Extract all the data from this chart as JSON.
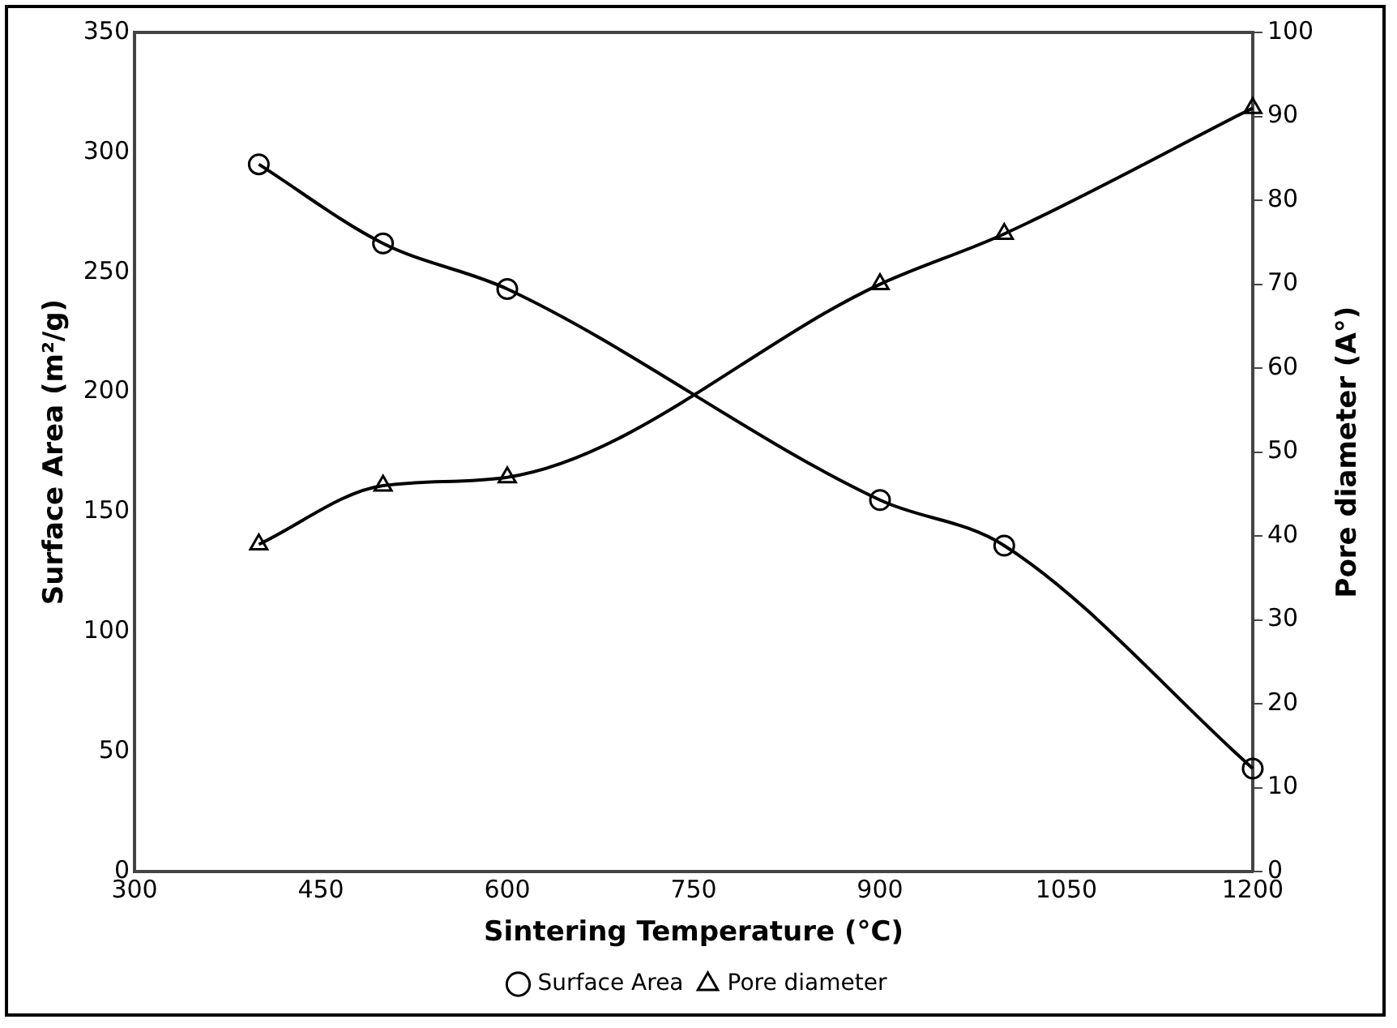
{
  "chart_data": {
    "type": "line",
    "xlabel": "Sintering Temperature (°C)",
    "ylabel": "Surface Area (m²/g)",
    "y2label": "Pore diameter (A°)",
    "x": [
      400,
      500,
      600,
      900,
      1000,
      1200
    ],
    "xlim": [
      300,
      1200
    ],
    "xticks": [
      300,
      450,
      600,
      750,
      900,
      1050,
      1200
    ],
    "ylim": [
      0,
      350
    ],
    "yticks": [
      0,
      50,
      100,
      150,
      200,
      250,
      300,
      350
    ],
    "y2lim": [
      0,
      100
    ],
    "y2ticks": [
      0,
      10,
      20,
      30,
      40,
      50,
      60,
      70,
      80,
      90,
      100
    ],
    "series": [
      {
        "name": "Surface Area",
        "color": "#000000",
        "marker": "circle",
        "values": [
          295,
          262,
          243,
          155,
          136,
          43
        ]
      },
      {
        "name": "Pore diameter",
        "color": "#000000",
        "marker": "triangle",
        "axis": "y2",
        "values": [
          39,
          46,
          47,
          70,
          76,
          91
        ]
      }
    ],
    "legend": "bottom",
    "grid": false,
    "line_style": "solid"
  }
}
